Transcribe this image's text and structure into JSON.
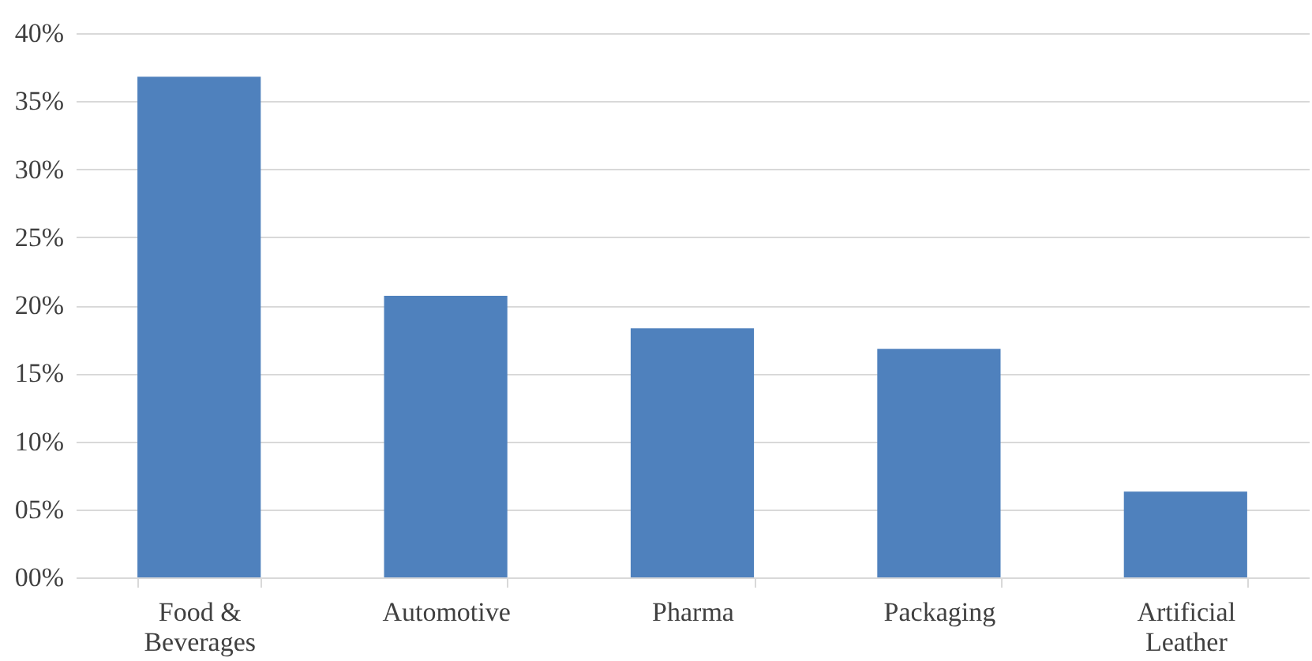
{
  "chart_data": {
    "type": "bar",
    "categories": [
      "Food & Beverages",
      "Automotive",
      "Pharma",
      "Packaging",
      "Artificial Leather"
    ],
    "values": [
      36.8,
      20.7,
      18.3,
      16.8,
      6.3
    ],
    "color": "#4f81bd",
    "ylim": [
      0,
      40
    ],
    "yticks": [
      {
        "value": 0,
        "label": "00%"
      },
      {
        "value": 5,
        "label": "05%"
      },
      {
        "value": 10,
        "label": "10%"
      },
      {
        "value": 15,
        "label": "15%"
      },
      {
        "value": 20,
        "label": "20%"
      },
      {
        "value": 25,
        "label": "25%"
      },
      {
        "value": 30,
        "label": "30%"
      },
      {
        "value": 35,
        "label": "35%"
      },
      {
        "value": 40,
        "label": "40%"
      }
    ],
    "grid": "y"
  }
}
